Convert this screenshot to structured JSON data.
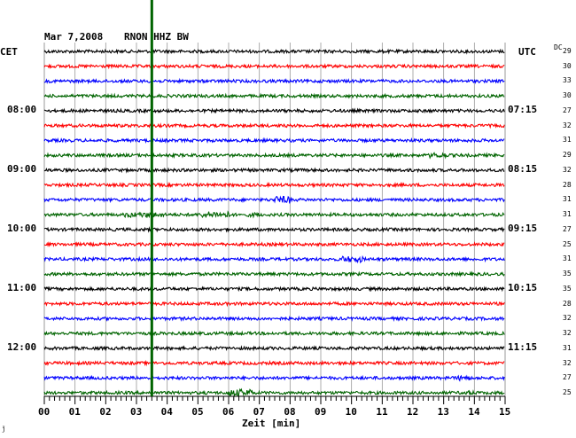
{
  "header": {
    "date": "Mar 7,2008",
    "station": "RNON HHZ BW",
    "left_tz": "CET",
    "right_tz": "UTC",
    "dc_label": "DC"
  },
  "left_time_labels": [
    "08:00",
    "09:00",
    "10:00",
    "11:00",
    "12:00"
  ],
  "right_time_labels": [
    "07:15",
    "08:15",
    "09:15",
    "10:15",
    "11:15"
  ],
  "dc_values": [
    "29",
    "30",
    "33",
    "30",
    "27",
    "32",
    "31",
    "29",
    "32",
    "28",
    "31",
    "31",
    "27",
    "25",
    "31",
    "35",
    "35",
    "28",
    "32",
    "32",
    "31",
    "32",
    "27",
    "25"
  ],
  "x_axis": {
    "label": "Zeit [min]",
    "ticks": [
      "00",
      "01",
      "02",
      "03",
      "04",
      "05",
      "06",
      "07",
      "08",
      "09",
      "10",
      "11",
      "12",
      "13",
      "14",
      "15"
    ]
  },
  "trace_colors": [
    "#000000",
    "#ff0000",
    "#0000ff",
    "#006400"
  ],
  "marker": {
    "color": "#006400",
    "minute": 3.5
  },
  "footer_mark": "ǰ"
}
